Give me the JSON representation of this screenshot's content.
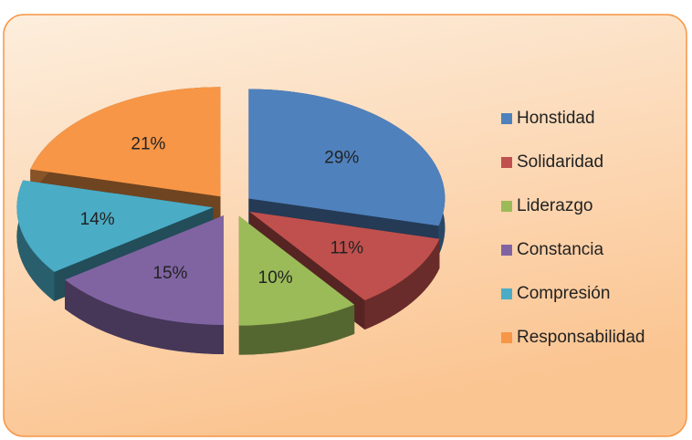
{
  "chart_data": {
    "type": "pie",
    "categories": [
      "Honstidad",
      "Solidaridad",
      "Liderazgo",
      "Constancia",
      "Compresión",
      "Responsabilidad"
    ],
    "values": [
      29,
      11,
      10,
      15,
      14,
      21
    ],
    "value_labels": [
      "29%",
      "11%",
      "10%",
      "15%",
      "14%",
      "21%"
    ],
    "colors": [
      "#4f81bd",
      "#c0504d",
      "#9bbb59",
      "#8064a2",
      "#4bacc6",
      "#f79646"
    ],
    "legend": "right"
  }
}
